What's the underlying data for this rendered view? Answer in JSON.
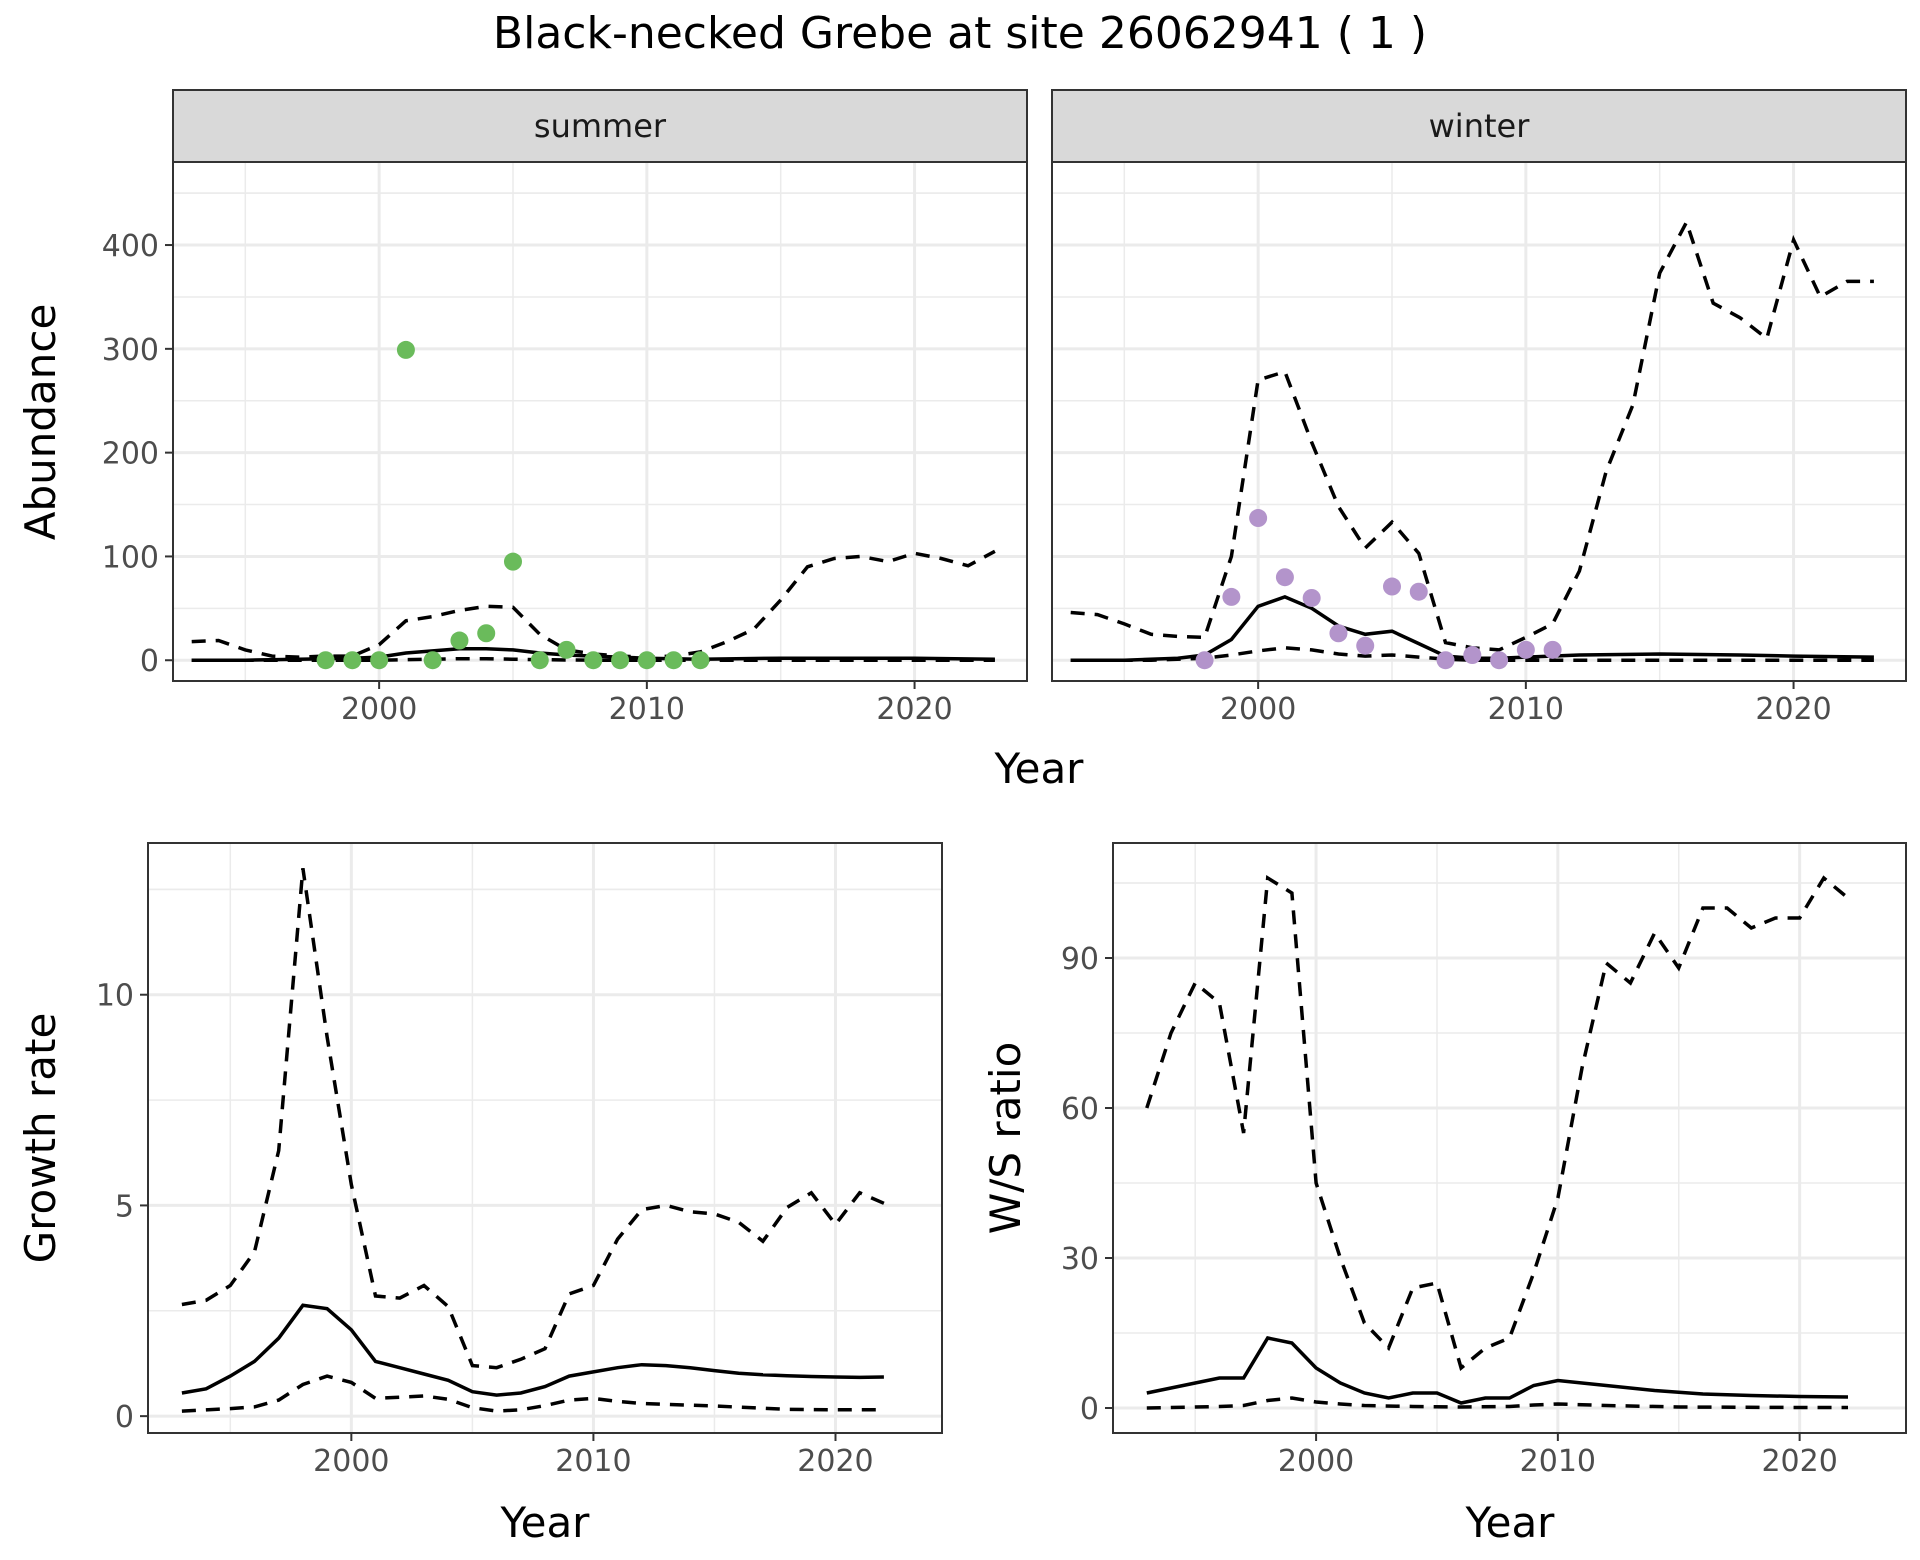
{
  "figure": {
    "title": "Black-necked Grebe at site 26062941 ( 1 )"
  },
  "colors": {
    "summer_points": "#6abb5b",
    "winter_points": "#b394cb",
    "lines": "#000000",
    "strip_background": "#d9d9d9"
  },
  "chart_data": [
    {
      "id": "abundance",
      "type": "line+scatter",
      "ylabel": "Abundance",
      "xlabel": "Year",
      "facets": [
        {
          "strip": "summer",
          "xlim": [
            1992.3,
            2024.2
          ],
          "ylim": [
            -20,
            480
          ],
          "x_ticks": [
            2000,
            2010,
            2020
          ],
          "y_ticks": [
            0,
            100,
            200,
            300,
            400
          ],
          "points": {
            "x": [
              1998,
              1999,
              2000,
              2001,
              2002,
              2003,
              2004,
              2005,
              2006,
              2007,
              2008,
              2009,
              2010,
              2011,
              2012
            ],
            "y": [
              0,
              0,
              0,
              299,
              0,
              19,
              26,
              95,
              0,
              10,
              0,
              0,
              0,
              0,
              0
            ]
          },
          "mean": {
            "x": [
              1993,
              1995,
              1997,
              1999,
              2000,
              2001,
              2002,
              2003,
              2004,
              2005,
              2006,
              2007,
              2008,
              2010,
              2012,
              2015,
              2018,
              2020,
              2023
            ],
            "y": [
              0,
              0,
              1,
              2,
              3,
              7,
              9,
              11,
              11,
              10,
              7,
              5,
              4,
              2,
              1,
              2,
              2,
              2,
              1
            ]
          },
          "upper": {
            "x": [
              1993,
              1994,
              1995,
              1996,
              1997,
              1998,
              1999,
              2000,
              2001,
              2002,
              2003,
              2004,
              2005,
              2006,
              2007,
              2008,
              2009,
              2010,
              2011,
              2012,
              2013,
              2014,
              2015,
              2016,
              2017,
              2018,
              2019,
              2020,
              2021,
              2022,
              2023
            ],
            "y": [
              18,
              19,
              10,
              4,
              3,
              4,
              4,
              15,
              38,
              42,
              48,
              52,
              51,
              25,
              10,
              6,
              4,
              3,
              4,
              8,
              18,
              30,
              58,
              90,
              98,
              100,
              95,
              103,
              98,
              91,
              105
            ]
          },
          "lower": {
            "x": [
              1993,
              1998,
              2000,
              2001,
              2002,
              2003,
              2004,
              2005,
              2006,
              2008,
              2010,
              2015,
              2020,
              2023
            ],
            "y": [
              0,
              0,
              0,
              0.5,
              1,
              1.5,
              1.5,
              1,
              0.5,
              0,
              0,
              0,
              0,
              0
            ]
          }
        },
        {
          "strip": "winter",
          "xlim": [
            1992.3,
            2024.2
          ],
          "ylim": [
            -20,
            480
          ],
          "x_ticks": [
            2000,
            2010,
            2020
          ],
          "y_ticks": [
            0,
            100,
            200,
            300,
            400
          ],
          "points": {
            "x": [
              1998,
              1999,
              2000,
              2001,
              2002,
              2003,
              2004,
              2005,
              2006,
              2007,
              2008,
              2009,
              2010,
              2011
            ],
            "y": [
              0,
              61,
              137,
              80,
              60,
              26,
              14,
              71,
              66,
              0,
              5,
              0,
              10,
              10
            ]
          },
          "mean": {
            "x": [
              1993,
              1995,
              1997,
              1998,
              1999,
              2000,
              2001,
              2002,
              2003,
              2004,
              2005,
              2006,
              2007,
              2008,
              2009,
              2010,
              2012,
              2015,
              2018,
              2020,
              2023
            ],
            "y": [
              0,
              0,
              2,
              5,
              20,
              52,
              61,
              50,
              33,
              25,
              28,
              16,
              4,
              2,
              2,
              3,
              5,
              6,
              5,
              4,
              3
            ]
          },
          "upper": {
            "x": [
              1993,
              1994,
              1995,
              1996,
              1997,
              1998,
              1999,
              2000,
              2001,
              2002,
              2003,
              2004,
              2005,
              2006,
              2007,
              2008,
              2009,
              2010,
              2011,
              2012,
              2013,
              2014,
              2015,
              2016,
              2017,
              2018,
              2019,
              2020,
              2021,
              2022,
              2023
            ],
            "y": [
              46,
              44,
              35,
              25,
              23,
              22,
              100,
              270,
              278,
              210,
              148,
              108,
              133,
              103,
              17,
              12,
              10,
              22,
              35,
              86,
              182,
              246,
              373,
              422,
              344,
              330,
              310,
              405,
              350,
              365,
              365
            ]
          },
          "lower": {
            "x": [
              1993,
              1996,
              1998,
              1999,
              2000,
              2001,
              2002,
              2003,
              2004,
              2005,
              2006,
              2007,
              2008,
              2010,
              2015,
              2020,
              2023
            ],
            "y": [
              0,
              0,
              2,
              5,
              9,
              12,
              10,
              6,
              4,
              5,
              3,
              1,
              0,
              0,
              0,
              0,
              0
            ]
          }
        }
      ]
    },
    {
      "id": "growth-rate",
      "type": "line",
      "ylabel": "Growth rate",
      "xlabel": "Year",
      "xlim": [
        1991.6,
        2024.4
      ],
      "ylim": [
        -0.4,
        13.6
      ],
      "x_ticks": [
        2000,
        2010,
        2020
      ],
      "y_ticks": [
        0,
        5,
        10
      ],
      "mean": {
        "x": [
          1993,
          1994,
          1995,
          1996,
          1997,
          1998,
          1999,
          2000,
          2001,
          2002,
          2003,
          2004,
          2005,
          2006,
          2007,
          2008,
          2009,
          2010,
          2011,
          2012,
          2013,
          2014,
          2015,
          2016,
          2017,
          2018,
          2019,
          2020,
          2021,
          2022
        ],
        "y": [
          0.55,
          0.65,
          0.95,
          1.3,
          1.85,
          2.63,
          2.55,
          2.05,
          1.3,
          1.15,
          1.0,
          0.85,
          0.58,
          0.5,
          0.55,
          0.7,
          0.95,
          1.05,
          1.15,
          1.22,
          1.2,
          1.15,
          1.08,
          1.02,
          0.98,
          0.96,
          0.94,
          0.93,
          0.92,
          0.93
        ]
      },
      "upper": {
        "x": [
          1993,
          1994,
          1995,
          1996,
          1997,
          1998,
          1999,
          2000,
          2001,
          2002,
          2003,
          2004,
          2005,
          2006,
          2007,
          2008,
          2009,
          2010,
          2011,
          2012,
          2013,
          2014,
          2015,
          2016,
          2017,
          2018,
          2019,
          2020,
          2021,
          2022
        ],
        "y": [
          2.65,
          2.75,
          3.1,
          3.9,
          6.3,
          13.0,
          9.0,
          5.5,
          2.85,
          2.8,
          3.1,
          2.6,
          1.2,
          1.15,
          1.35,
          1.6,
          2.9,
          3.1,
          4.2,
          4.9,
          5.0,
          4.85,
          4.8,
          4.6,
          4.15,
          4.95,
          5.3,
          4.55,
          5.3,
          5.05
        ]
      },
      "lower": {
        "x": [
          1993,
          1995,
          1996,
          1997,
          1998,
          1999,
          2000,
          2001,
          2002,
          2003,
          2004,
          2005,
          2006,
          2007,
          2008,
          2009,
          2010,
          2011,
          2012,
          2015,
          2018,
          2020,
          2022
        ],
        "y": [
          0.12,
          0.18,
          0.22,
          0.38,
          0.75,
          0.95,
          0.8,
          0.42,
          0.45,
          0.48,
          0.4,
          0.2,
          0.12,
          0.15,
          0.25,
          0.38,
          0.42,
          0.35,
          0.3,
          0.24,
          0.16,
          0.15,
          0.15
        ]
      }
    },
    {
      "id": "ws-ratio",
      "type": "line",
      "ylabel": "W/S ratio",
      "xlabel": "Year",
      "xlim": [
        1991.6,
        2024.4
      ],
      "ylim": [
        -5,
        113
      ],
      "x_ticks": [
        2000,
        2010,
        2020
      ],
      "y_ticks": [
        0,
        30,
        60,
        90
      ],
      "mean": {
        "x": [
          1993,
          1994,
          1995,
          1996,
          1997,
          1998,
          1999,
          2000,
          2001,
          2002,
          2003,
          2004,
          2005,
          2006,
          2007,
          2008,
          2009,
          2010,
          2012,
          2014,
          2016,
          2018,
          2020,
          2022
        ],
        "y": [
          3,
          4,
          5,
          6,
          6,
          14,
          13,
          8,
          5,
          3,
          2,
          3,
          3,
          1,
          2,
          2,
          4.5,
          5.5,
          4.5,
          3.5,
          2.8,
          2.5,
          2.3,
          2.2
        ]
      },
      "upper": {
        "x": [
          1993,
          1994,
          1995,
          1996,
          1997,
          1998,
          1999,
          2000,
          2001,
          2002,
          2003,
          2004,
          2005,
          2006,
          2007,
          2008,
          2009,
          2010,
          2011,
          2012,
          2013,
          2014,
          2015,
          2016,
          2017,
          2018,
          2019,
          2020,
          2021,
          2022
        ],
        "y": [
          60,
          75,
          85,
          81,
          55,
          106,
          103,
          45,
          30,
          17,
          12,
          24,
          25,
          8,
          12,
          14,
          27,
          42,
          68,
          89,
          85,
          95,
          88,
          100,
          100,
          96,
          98,
          98,
          106,
          102
        ]
      },
      "lower": {
        "x": [
          1993,
          1996,
          1997,
          1998,
          1999,
          2000,
          2001,
          2002,
          2004,
          2006,
          2008,
          2009,
          2010,
          2012,
          2015,
          2020,
          2022
        ],
        "y": [
          0,
          0.3,
          0.5,
          1.5,
          2,
          1.2,
          0.8,
          0.5,
          0.3,
          0.2,
          0.3,
          0.6,
          0.8,
          0.5,
          0.2,
          0.1,
          0.1
        ]
      }
    }
  ]
}
